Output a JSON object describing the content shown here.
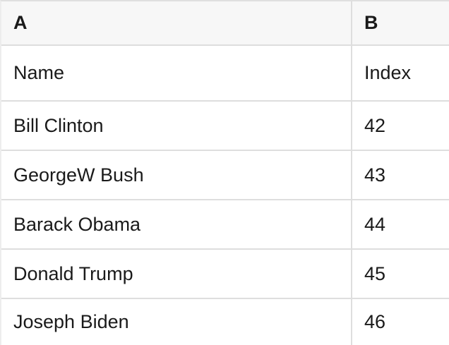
{
  "table": {
    "column_letters": [
      "A",
      "B"
    ],
    "rows": [
      {
        "a": "Name",
        "b": "Index"
      },
      {
        "a": "Bill Clinton",
        "b": "42"
      },
      {
        "a": "GeorgeW Bush",
        "b": "43"
      },
      {
        "a": "Barack Obama",
        "b": "44"
      },
      {
        "a": "Donald Trump",
        "b": "45"
      },
      {
        "a": "Joseph Biden",
        "b": "46"
      }
    ]
  },
  "colors": {
    "header_background": "#f7f7f7",
    "grid_line": "#dedede",
    "text": "#1a1a1a",
    "row_background": "#ffffff"
  }
}
